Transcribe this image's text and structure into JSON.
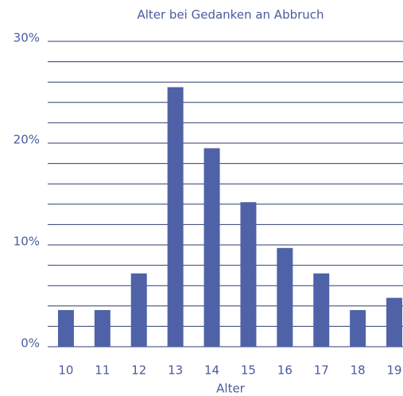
{
  "chart_data": {
    "type": "bar",
    "title": "Alter bei Gedanken an Abbruch",
    "x_label": "Alter",
    "categories": [
      "10",
      "11",
      "12",
      "13",
      "14",
      "15",
      "16",
      "17",
      "18",
      "19"
    ],
    "values": [
      3.6,
      3.6,
      7.2,
      25.5,
      19.5,
      14.2,
      9.7,
      7.2,
      3.6,
      4.8
    ],
    "color": "#4f62a8",
    "ylim": [
      0,
      30
    ],
    "yticks": [
      {
        "value": 0,
        "label": "0%"
      },
      {
        "value": 10,
        "label": "10%"
      },
      {
        "value": 20,
        "label": "20%"
      },
      {
        "value": 30,
        "label": "30%"
      }
    ],
    "minor_yticks": [
      2,
      4,
      6,
      8,
      12,
      14,
      16,
      18,
      22,
      24,
      26,
      28
    ],
    "grid": true
  }
}
